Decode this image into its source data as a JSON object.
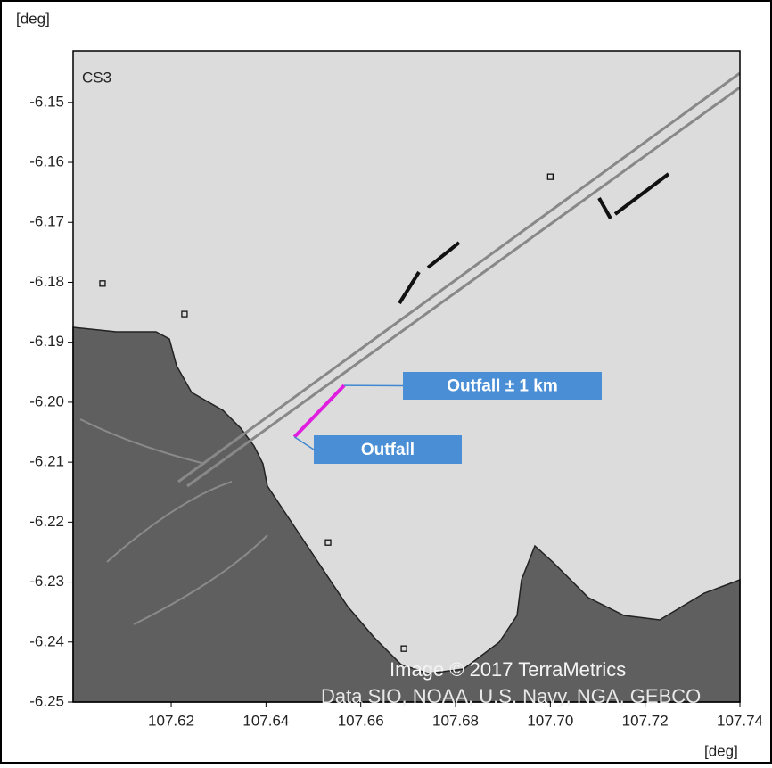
{
  "chart_data": {
    "type": "map",
    "panel_label": "CS3",
    "y_label": "[deg]",
    "x_label": "[deg]",
    "attribution": [
      "Image © 2017 TerraMetrics",
      "Data SIO, NOAA, U.S. Navy, NGA, GEBCO"
    ],
    "xlim": [
      107.5993,
      107.74
    ],
    "ylim": [
      -6.25,
      -6.1414
    ],
    "xticks": [
      107.62,
      107.64,
      107.66,
      107.68,
      {
        "value": 107.7,
        "label": "107.70"
      },
      107.72,
      107.74
    ],
    "yticks": [
      -6.15,
      -6.16,
      -6.17,
      -6.18,
      -6.19,
      {
        "value": -6.2,
        "label": "-6.20"
      },
      -6.21,
      -6.22,
      -6.23,
      -6.24,
      -6.25
    ],
    "stations": {
      "lon": [
        107.6055,
        107.6228,
        107.7,
        107.6531,
        107.6691
      ],
      "lat": [
        -6.1802,
        -6.1853,
        -6.1624,
        -6.2234,
        -6.2411
      ]
    },
    "pipeline": {
      "color": "#e01ee0",
      "lon": [
        107.646,
        107.6565
      ],
      "lat": [
        -6.2058,
        -6.1972
      ]
    },
    "annotations": [
      {
        "text": "Outfall ± 1 km",
        "lon": 107.6565,
        "lat": -6.1972
      },
      {
        "text": "Outfall",
        "lon": 107.646,
        "lat": -6.2058
      }
    ]
  }
}
